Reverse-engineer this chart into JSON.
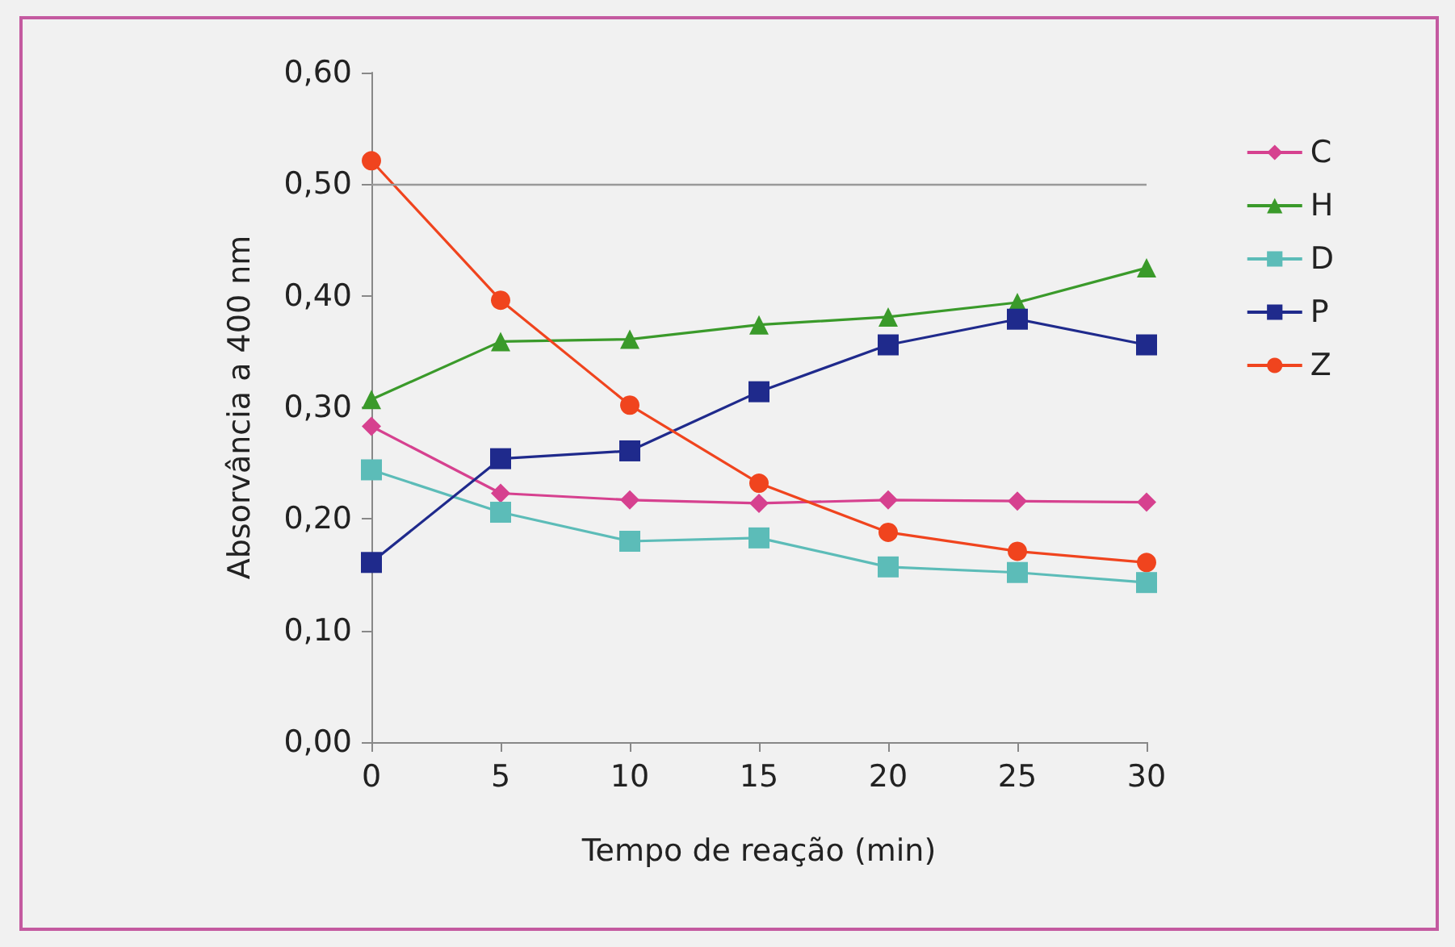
{
  "chart_data": {
    "type": "line",
    "xlabel": "Tempo de reação (min)",
    "ylabel": "Absorvância a 400 nm",
    "x": [
      0,
      5,
      10,
      15,
      20,
      25,
      30
    ],
    "xlim": [
      0,
      30
    ],
    "xticks": [
      0,
      5,
      10,
      15,
      20,
      25,
      30
    ],
    "ylim": [
      0,
      0.6
    ],
    "yticks": [
      {
        "value": 0,
        "label": "0,00"
      },
      {
        "value": 0.1,
        "label": "0,10"
      },
      {
        "value": 0.2,
        "label": "0,20"
      },
      {
        "value": 0.3,
        "label": "0,30"
      },
      {
        "value": 0.4,
        "label": "0,40"
      },
      {
        "value": 0.5,
        "label": "0,50"
      },
      {
        "value": 0.6,
        "label": "0,60"
      }
    ],
    "ref_lines": [
      {
        "axis": "y",
        "value": 0.5,
        "color": "#9a9a9a"
      }
    ],
    "grid": false,
    "legend": "right",
    "line_style": "solid",
    "series": [
      {
        "name": "C",
        "color": "#d6418f",
        "marker": "diamond",
        "values": [
          0.283,
          0.223,
          0.217,
          0.214,
          0.217,
          0.216,
          0.215
        ]
      },
      {
        "name": "H",
        "color": "#3a9a2a",
        "marker": "triangle",
        "values": [
          0.307,
          0.359,
          0.361,
          0.374,
          0.381,
          0.394,
          0.425
        ]
      },
      {
        "name": "D",
        "color": "#5cbcb8",
        "marker": "square",
        "values": [
          0.244,
          0.206,
          0.18,
          0.183,
          0.157,
          0.152,
          0.143
        ]
      },
      {
        "name": "P",
        "color": "#1f2a8c",
        "marker": "square",
        "values": [
          0.161,
          0.254,
          0.261,
          0.314,
          0.356,
          0.379,
          0.356
        ]
      },
      {
        "name": "Z",
        "color": "#f0441e",
        "marker": "circle",
        "values": [
          0.521,
          0.396,
          0.302,
          0.232,
          0.188,
          0.171,
          0.161
        ]
      }
    ]
  }
}
